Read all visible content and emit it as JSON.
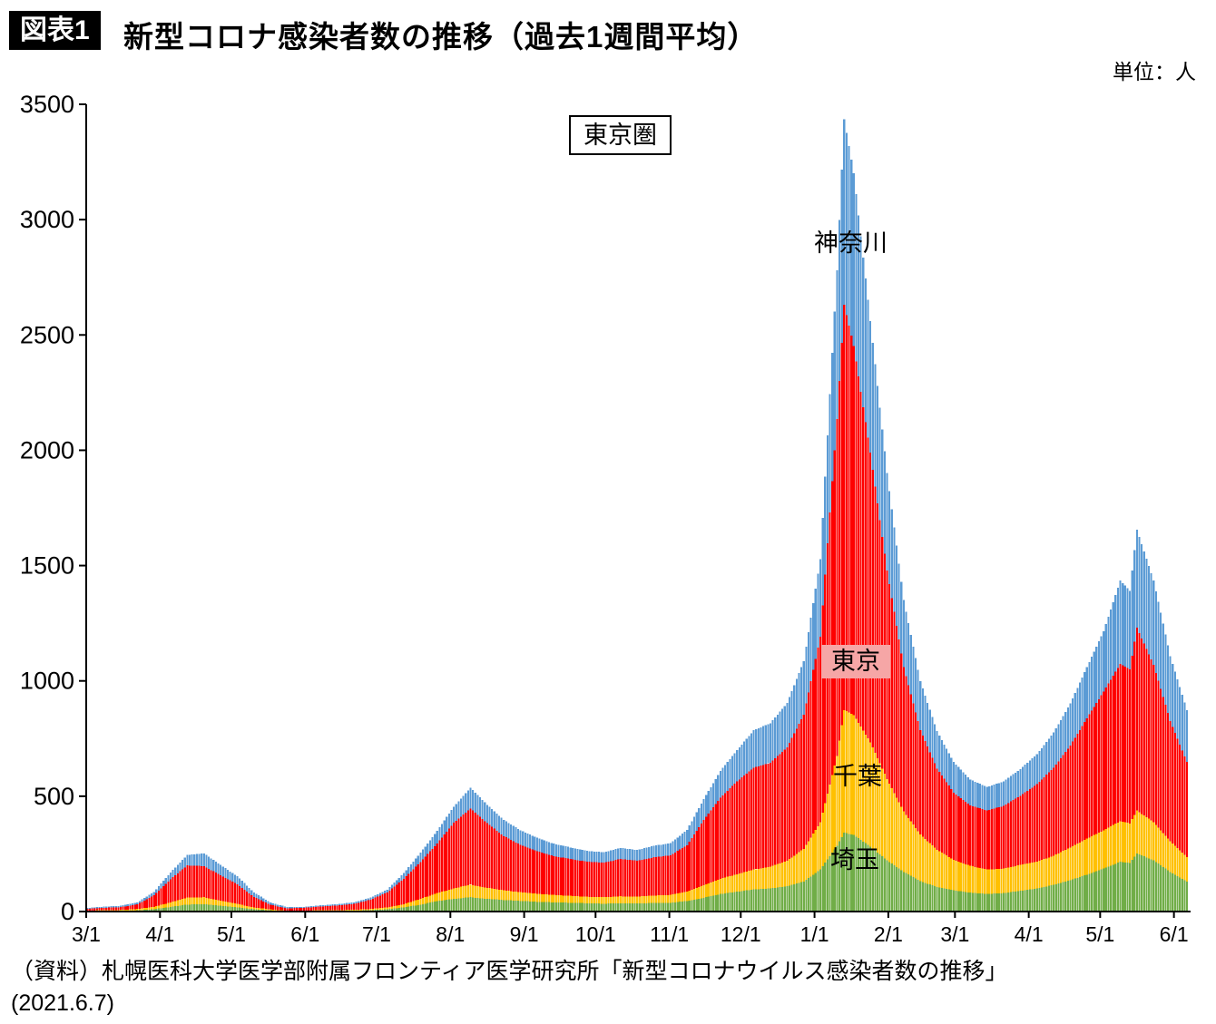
{
  "header": {
    "tag": "図表1",
    "title": "新型コロナ感染者数の推移（過去1週間平均）",
    "unit": "単位：人"
  },
  "chart_data": {
    "type": "bar",
    "stacked": true,
    "title": "東京圏",
    "xlabel": "",
    "ylabel": "",
    "ylim": [
      0,
      3500
    ],
    "y_ticks": [
      0,
      500,
      1000,
      1500,
      2000,
      2500,
      3000,
      3500
    ],
    "x_ticks": [
      {
        "day": 0,
        "label": "3/1"
      },
      {
        "day": 31,
        "label": "4/1"
      },
      {
        "day": 61,
        "label": "5/1"
      },
      {
        "day": 92,
        "label": "6/1"
      },
      {
        "day": 122,
        "label": "7/1"
      },
      {
        "day": 153,
        "label": "8/1"
      },
      {
        "day": 184,
        "label": "9/1"
      },
      {
        "day": 214,
        "label": "10/1"
      },
      {
        "day": 245,
        "label": "11/1"
      },
      {
        "day": 275,
        "label": "12/1"
      },
      {
        "day": 306,
        "label": "1/1"
      },
      {
        "day": 337,
        "label": "2/1"
      },
      {
        "day": 365,
        "label": "3/1"
      },
      {
        "day": 396,
        "label": "4/1"
      },
      {
        "day": 426,
        "label": "5/1"
      },
      {
        "day": 457,
        "label": "6/1"
      }
    ],
    "days": [
      0,
      7,
      14,
      21,
      28,
      35,
      42,
      49,
      56,
      63,
      70,
      77,
      84,
      91,
      98,
      105,
      112,
      119,
      126,
      133,
      140,
      147,
      154,
      161,
      168,
      175,
      182,
      189,
      196,
      203,
      210,
      217,
      224,
      231,
      238,
      245,
      252,
      259,
      266,
      273,
      280,
      287,
      294,
      301,
      308,
      315,
      318,
      322,
      329,
      336,
      343,
      350,
      357,
      364,
      371,
      378,
      385,
      392,
      399,
      406,
      413,
      420,
      427,
      434,
      438,
      441,
      448,
      455,
      462
    ],
    "series": [
      {
        "name": "埼玉",
        "color": "#70AD47",
        "values": [
          2,
          3,
          3,
          5,
          10,
          20,
          30,
          32,
          25,
          18,
          10,
          5,
          2,
          2,
          3,
          3,
          4,
          6,
          10,
          18,
          30,
          45,
          55,
          62,
          55,
          50,
          46,
          42,
          40,
          38,
          36,
          34,
          36,
          35,
          37,
          38,
          46,
          60,
          76,
          86,
          96,
          100,
          110,
          130,
          182,
          285,
          342,
          332,
          282,
          222,
          172,
          132,
          106,
          92,
          82,
          76,
          80,
          90,
          100,
          116,
          136,
          160,
          186,
          216,
          210,
          252,
          222,
          172,
          130
        ]
      },
      {
        "name": "千葉",
        "color": "#FFC000",
        "values": [
          2,
          3,
          4,
          6,
          10,
          20,
          30,
          30,
          22,
          15,
          8,
          4,
          2,
          2,
          3,
          3,
          4,
          5,
          8,
          14,
          25,
          35,
          45,
          55,
          48,
          42,
          38,
          35,
          32,
          30,
          28,
          28,
          30,
          30,
          32,
          34,
          40,
          55,
          66,
          76,
          86,
          95,
          110,
          142,
          205,
          390,
          532,
          520,
          452,
          352,
          262,
          202,
          162,
          132,
          116,
          106,
          106,
          112,
          116,
          126,
          142,
          156,
          166,
          176,
          172,
          186,
          166,
          132,
          106
        ]
      },
      {
        "name": "東京",
        "color": "#FE0000",
        "values": [
          8,
          10,
          12,
          20,
          50,
          100,
          140,
          135,
          110,
          85,
          45,
          20,
          10,
          12,
          16,
          20,
          25,
          40,
          65,
          110,
          160,
          215,
          285,
          330,
          280,
          235,
          205,
          185,
          168,
          160,
          152,
          150,
          162,
          156,
          166,
          172,
          202,
          282,
          352,
          402,
          442,
          450,
          492,
          582,
          805,
          1460,
          1756,
          1600,
          1255,
          905,
          625,
          452,
          352,
          292,
          262,
          256,
          272,
          300,
          336,
          382,
          442,
          522,
          602,
          682,
          668,
          792,
          682,
          522,
          412
        ]
      },
      {
        "name": "神奈川",
        "color": "#5B9BD5",
        "values": [
          4,
          5,
          6,
          8,
          15,
          30,
          45,
          55,
          45,
          35,
          20,
          10,
          5,
          4,
          5,
          6,
          7,
          9,
          12,
          25,
          40,
          55,
          70,
          90,
          80,
          70,
          63,
          58,
          54,
          50,
          47,
          45,
          48,
          46,
          50,
          52,
          66,
          90,
          116,
          136,
          162,
          172,
          192,
          232,
          335,
          645,
          805,
          750,
          572,
          422,
          292,
          212,
          162,
          132,
          112,
          102,
          106,
          116,
          130,
          152,
          182,
          222,
          262,
          362,
          340,
          426,
          366,
          282,
          226
        ]
      }
    ],
    "annotations": {
      "region_label": "東京圏",
      "kanagawa": "神奈川",
      "tokyo": "東京",
      "tokyo_label_bg": "#F6A6A6",
      "chiba": "千葉",
      "saitama": "埼玉"
    }
  },
  "footer": {
    "source_line1": "（資料）札幌医科大学医学部附属フロンティア医学研究所「新型コロナウイルス感染者数の推移」",
    "source_line2": "(2021.6.7)"
  }
}
